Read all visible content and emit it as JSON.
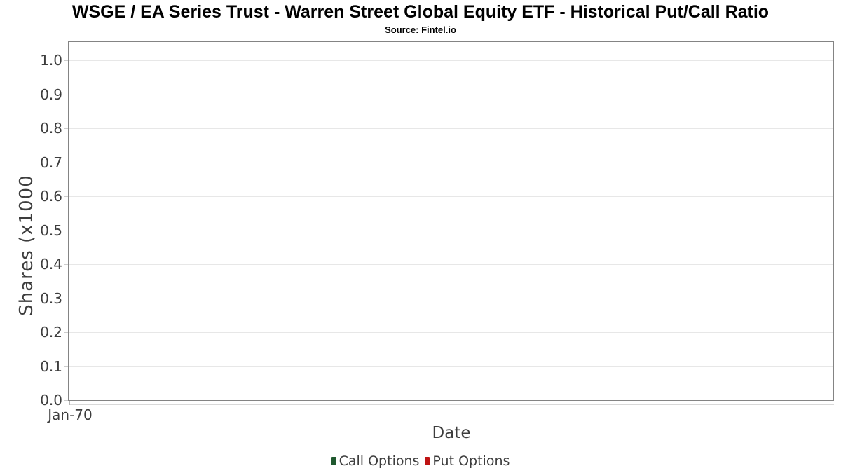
{
  "chart_data": {
    "type": "line",
    "title": "WSGE / EA Series Trust - Warren Street Global Equity ETF - Historical Put/Call Ratio",
    "subtitle": "Source: Fintel.io",
    "xlabel": "Date",
    "ylabel": "Shares (x1000",
    "x_ticks": [
      "Jan-70"
    ],
    "y_ticks": [
      0,
      0.1,
      0.2,
      0.3,
      0.4,
      0.5,
      0.6,
      0.7,
      0.8,
      0.9,
      1.0
    ],
    "ylim": [
      0,
      1.05
    ],
    "grid": "horizontal-only",
    "legend_position": "bottom-center",
    "series": [
      {
        "name": "Call Options",
        "color": "#20592f",
        "marker": "square",
        "x": [],
        "y": []
      },
      {
        "name": "Put Options",
        "color": "#bf1313",
        "marker": "square",
        "x": [],
        "y": []
      }
    ]
  },
  "colors": {
    "plot_border": "#848484",
    "gridline": "#e7e7e7",
    "axis_line": "#d9d9d9",
    "tick_mark": "#cccccc",
    "text": "#3d3d3d"
  }
}
